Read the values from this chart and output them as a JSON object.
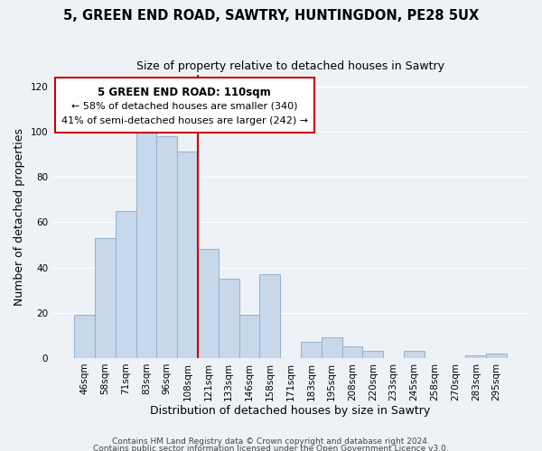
{
  "title": "5, GREEN END ROAD, SAWTRY, HUNTINGDON, PE28 5UX",
  "subtitle": "Size of property relative to detached houses in Sawtry",
  "xlabel": "Distribution of detached houses by size in Sawtry",
  "ylabel": "Number of detached properties",
  "bar_color": "#c8d8eb",
  "bar_edgecolor": "#9ab4cc",
  "categories": [
    "46sqm",
    "58sqm",
    "71sqm",
    "83sqm",
    "96sqm",
    "108sqm",
    "121sqm",
    "133sqm",
    "146sqm",
    "158sqm",
    "171sqm",
    "183sqm",
    "195sqm",
    "208sqm",
    "220sqm",
    "233sqm",
    "245sqm",
    "258sqm",
    "270sqm",
    "283sqm",
    "295sqm"
  ],
  "values": [
    19,
    53,
    65,
    101,
    98,
    91,
    48,
    35,
    19,
    37,
    0,
    7,
    9,
    5,
    3,
    0,
    3,
    0,
    0,
    1,
    2
  ],
  "vline_x": 6.0,
  "vline_color": "#cc0000",
  "ylim": [
    0,
    125
  ],
  "yticks": [
    0,
    20,
    40,
    60,
    80,
    100,
    120
  ],
  "annotation_title": "5 GREEN END ROAD: 110sqm",
  "annotation_line1": "← 58% of detached houses are smaller (340)",
  "annotation_line2": "41% of semi-detached houses are larger (242) →",
  "footer1": "Contains HM Land Registry data © Crown copyright and database right 2024.",
  "footer2": "Contains public sector information licensed under the Open Government Licence v3.0.",
  "background_color": "#eef2f7",
  "plot_background": "#eef2f7",
  "grid_color": "#ffffff"
}
